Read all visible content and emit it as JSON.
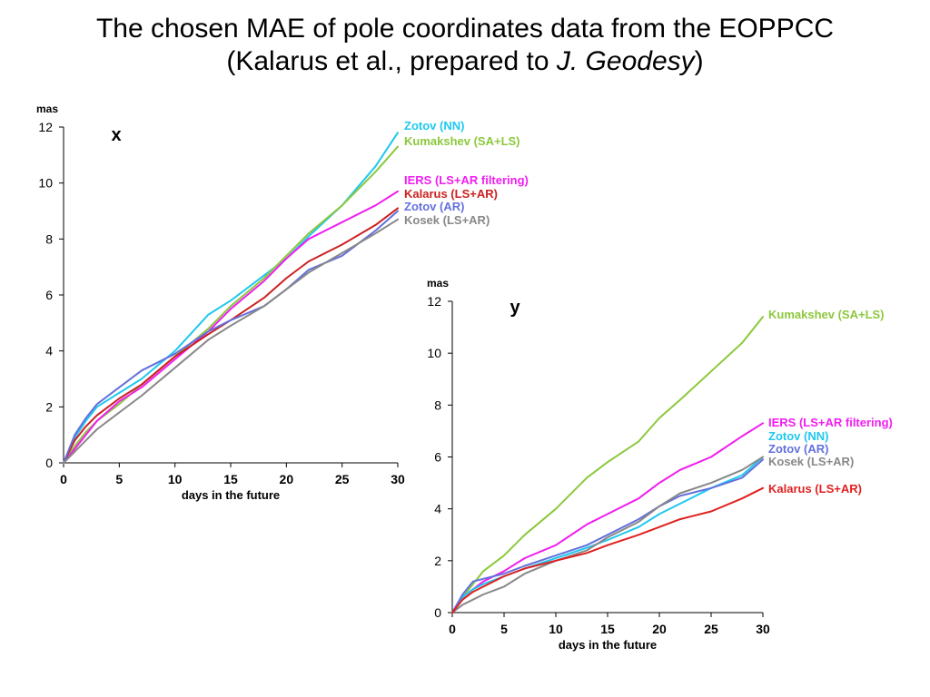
{
  "title": {
    "line1": "The chosen MAE of pole coordinates data from the EOPPCC",
    "line2_prefix": "(Kalarus et al., prepared to ",
    "line2_italic": "J. Geodesy",
    "line2_suffix": ")"
  },
  "chart_data": [
    {
      "type": "line",
      "panel_label": "x",
      "ylabel": "mas",
      "xlabel": "days in the future",
      "xlim": [
        0,
        30
      ],
      "ylim": [
        0,
        12
      ],
      "xticks": [
        0,
        5,
        10,
        15,
        20,
        25,
        30
      ],
      "yticks": [
        0,
        2,
        4,
        6,
        8,
        10,
        12
      ],
      "grid": false,
      "legend": "right",
      "series": [
        {
          "name": "Zotov (NN)",
          "color": "#1ec8f0",
          "x": [
            0,
            1,
            2,
            3,
            5,
            7,
            10,
            13,
            15,
            18,
            20,
            22,
            25,
            28,
            30
          ],
          "y": [
            0,
            0.9,
            1.5,
            2.0,
            2.5,
            3.0,
            4.0,
            5.3,
            5.8,
            6.7,
            7.3,
            8.1,
            9.2,
            10.6,
            11.8
          ]
        },
        {
          "name": "Kumakshev (SA+LS)",
          "color": "#8cc83c",
          "x": [
            0,
            1,
            2,
            3,
            5,
            7,
            10,
            13,
            15,
            18,
            20,
            22,
            25,
            28,
            30
          ],
          "y": [
            0,
            0.6,
            1.1,
            1.5,
            2.1,
            2.8,
            3.8,
            4.8,
            5.6,
            6.6,
            7.4,
            8.2,
            9.2,
            10.4,
            11.3
          ]
        },
        {
          "name": "IERS (LS+AR filtering)",
          "color": "#f01ef0",
          "x": [
            0,
            1,
            2,
            3,
            5,
            7,
            10,
            13,
            15,
            18,
            20,
            22,
            25,
            28,
            30
          ],
          "y": [
            0,
            0.5,
            1.0,
            1.5,
            2.2,
            2.7,
            3.7,
            4.7,
            5.5,
            6.5,
            7.3,
            8.0,
            8.6,
            9.2,
            9.7
          ]
        },
        {
          "name": "Kalarus (LS+AR)",
          "color": "#cc2020",
          "x": [
            0,
            1,
            2,
            3,
            5,
            7,
            10,
            13,
            15,
            18,
            20,
            22,
            25,
            28,
            30
          ],
          "y": [
            0,
            0.8,
            1.3,
            1.7,
            2.3,
            2.8,
            3.8,
            4.6,
            5.1,
            5.9,
            6.6,
            7.2,
            7.8,
            8.5,
            9.1
          ]
        },
        {
          "name": "Zotov (AR)",
          "color": "#6470dc",
          "x": [
            0,
            1,
            2,
            3,
            5,
            7,
            10,
            13,
            15,
            18,
            20,
            22,
            25,
            28,
            30
          ],
          "y": [
            0,
            1.0,
            1.6,
            2.1,
            2.7,
            3.3,
            3.9,
            4.7,
            5.1,
            5.6,
            6.2,
            6.9,
            7.4,
            8.3,
            9.0
          ]
        },
        {
          "name": "Kosek (LS+AR)",
          "color": "#888888",
          "x": [
            0,
            1,
            2,
            3,
            5,
            7,
            10,
            13,
            15,
            18,
            20,
            22,
            25,
            28,
            30
          ],
          "y": [
            0,
            0.4,
            0.8,
            1.2,
            1.8,
            2.4,
            3.4,
            4.4,
            4.9,
            5.6,
            6.2,
            6.8,
            7.5,
            8.2,
            8.7
          ]
        }
      ]
    },
    {
      "type": "line",
      "panel_label": "y",
      "ylabel": "mas",
      "xlabel": "days in the future",
      "xlim": [
        0,
        30
      ],
      "ylim": [
        0,
        12
      ],
      "xticks": [
        0,
        5,
        10,
        15,
        20,
        25,
        30
      ],
      "yticks": [
        0,
        2,
        4,
        6,
        8,
        10,
        12
      ],
      "grid": false,
      "legend": "right",
      "series": [
        {
          "name": "Kumakshev (SA+LS)",
          "color": "#8cc83c",
          "x": [
            0,
            1,
            2,
            3,
            5,
            7,
            10,
            13,
            15,
            18,
            20,
            22,
            25,
            28,
            30
          ],
          "y": [
            0,
            0.6,
            1.1,
            1.6,
            2.2,
            3.0,
            4.0,
            5.2,
            5.8,
            6.6,
            7.5,
            8.2,
            9.3,
            10.4,
            11.4
          ]
        },
        {
          "name": "IERS (LS+AR filtering)",
          "color": "#f01ef0",
          "x": [
            0,
            1,
            2,
            3,
            5,
            7,
            10,
            13,
            15,
            18,
            20,
            22,
            25,
            28,
            30
          ],
          "y": [
            0,
            0.6,
            0.9,
            1.2,
            1.6,
            2.1,
            2.6,
            3.4,
            3.8,
            4.4,
            5.0,
            5.5,
            6.0,
            6.8,
            7.3
          ]
        },
        {
          "name": "Zotov (NN)",
          "color": "#1ec8f0",
          "x": [
            0,
            1,
            2,
            3,
            5,
            7,
            10,
            13,
            15,
            18,
            20,
            22,
            25,
            28,
            30
          ],
          "y": [
            0,
            0.6,
            0.9,
            1.1,
            1.4,
            1.7,
            2.1,
            2.5,
            2.8,
            3.3,
            3.8,
            4.2,
            4.8,
            5.3,
            6.0
          ]
        },
        {
          "name": "Zotov (AR)",
          "color": "#6470dc",
          "x": [
            0,
            1,
            2,
            3,
            5,
            7,
            10,
            13,
            15,
            18,
            20,
            22,
            25,
            28,
            30
          ],
          "y": [
            0,
            0.7,
            1.2,
            1.3,
            1.5,
            1.8,
            2.2,
            2.6,
            3.0,
            3.6,
            4.1,
            4.5,
            4.8,
            5.2,
            5.9
          ]
        },
        {
          "name": "Kosek (LS+AR)",
          "color": "#888888",
          "x": [
            0,
            1,
            2,
            3,
            5,
            7,
            10,
            13,
            15,
            18,
            20,
            22,
            25,
            28,
            30
          ],
          "y": [
            0,
            0.3,
            0.5,
            0.7,
            1.0,
            1.5,
            2.0,
            2.4,
            2.9,
            3.5,
            4.1,
            4.6,
            5.0,
            5.5,
            6.0
          ]
        },
        {
          "name": "Kalarus (LS+AR)",
          "color": "#e02020",
          "x": [
            0,
            1,
            2,
            3,
            5,
            7,
            10,
            13,
            15,
            18,
            20,
            22,
            25,
            28,
            30
          ],
          "y": [
            0,
            0.5,
            0.8,
            1.0,
            1.4,
            1.7,
            2.0,
            2.3,
            2.6,
            3.0,
            3.3,
            3.6,
            3.9,
            4.4,
            4.8
          ]
        }
      ]
    }
  ]
}
